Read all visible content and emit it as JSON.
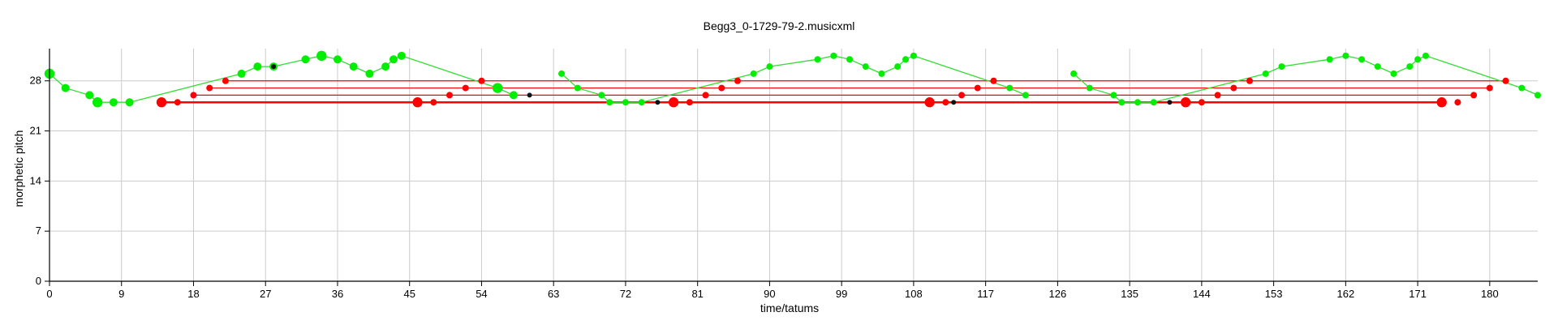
{
  "chart_data": {
    "type": "scatter",
    "title": "Begg3_0-1729-79-2.musicxml",
    "xlabel": "time/tatums",
    "ylabel": "morphetic pitch",
    "xlim": [
      0,
      186
    ],
    "ylim": [
      0,
      32.5
    ],
    "xticks": [
      0,
      9,
      18,
      27,
      36,
      45,
      54,
      63,
      72,
      81,
      90,
      99,
      108,
      117,
      126,
      135,
      144,
      153,
      162,
      171,
      180
    ],
    "yticks": [
      0,
      7,
      14,
      21,
      28
    ],
    "grid": true,
    "colors": {
      "melody": "#00ee00",
      "melody_line": "#33dd33",
      "pattern": "#ff0000",
      "marker": "#111111",
      "grid": "#cccccc"
    },
    "melody_segments": [
      [
        [
          0,
          29,
          "L"
        ],
        [
          2,
          27,
          "M"
        ],
        [
          5,
          26,
          "M"
        ],
        [
          6,
          25,
          "L"
        ],
        [
          8,
          25,
          "M"
        ],
        [
          10,
          25,
          "M"
        ],
        [
          24,
          29,
          "M"
        ],
        [
          26,
          30,
          "M"
        ],
        [
          28,
          30,
          "M"
        ],
        [
          32,
          31,
          "M"
        ],
        [
          34,
          31.5,
          "L"
        ],
        [
          36,
          31,
          "M"
        ],
        [
          38,
          30,
          "M"
        ],
        [
          40,
          29,
          "M"
        ],
        [
          42,
          30,
          "M"
        ],
        [
          43,
          31,
          "M"
        ],
        [
          44,
          31.5,
          "M"
        ],
        [
          56,
          27,
          "L"
        ],
        [
          58,
          26,
          "M"
        ]
      ],
      [
        [
          64,
          29,
          "S"
        ],
        [
          66,
          27,
          "S"
        ],
        [
          69,
          26,
          "S"
        ],
        [
          70,
          25,
          "S"
        ],
        [
          72,
          25,
          "S"
        ],
        [
          74,
          25,
          "S"
        ],
        [
          88,
          29,
          "S"
        ],
        [
          90,
          30,
          "S"
        ],
        [
          96,
          31,
          "S"
        ],
        [
          98,
          31.5,
          "S"
        ],
        [
          100,
          31,
          "S"
        ],
        [
          102,
          30,
          "S"
        ],
        [
          104,
          29,
          "S"
        ],
        [
          106,
          30,
          "S"
        ],
        [
          107,
          31,
          "S"
        ],
        [
          108,
          31.5,
          "S"
        ],
        [
          120,
          27,
          "S"
        ],
        [
          122,
          26,
          "S"
        ]
      ],
      [
        [
          128,
          29,
          "S"
        ],
        [
          130,
          27,
          "S"
        ],
        [
          133,
          26,
          "S"
        ],
        [
          134,
          25,
          "S"
        ],
        [
          136,
          25,
          "S"
        ],
        [
          138,
          25,
          "S"
        ],
        [
          152,
          29,
          "S"
        ],
        [
          154,
          30,
          "S"
        ],
        [
          160,
          31,
          "S"
        ],
        [
          162,
          31.5,
          "S"
        ],
        [
          164,
          31,
          "S"
        ],
        [
          166,
          30,
          "S"
        ],
        [
          168,
          29,
          "S"
        ],
        [
          170,
          30,
          "S"
        ],
        [
          171,
          31,
          "S"
        ],
        [
          172,
          31.5,
          "S"
        ],
        [
          184,
          27,
          "S"
        ],
        [
          186,
          26,
          "S"
        ]
      ]
    ],
    "pattern_lines": [
      {
        "y": 25,
        "x": [
          14,
          174
        ],
        "width": 2.5
      },
      {
        "y": 26,
        "x": [
          18,
          178
        ],
        "width": 1.2
      },
      {
        "y": 27,
        "x": [
          20,
          180
        ],
        "width": 1.2
      },
      {
        "y": 28,
        "x": [
          22,
          182
        ],
        "width": 1.2
      }
    ],
    "pattern_points": [
      [
        14,
        25,
        "L"
      ],
      [
        16,
        25,
        "S"
      ],
      [
        18,
        26,
        "S"
      ],
      [
        20,
        27,
        "S"
      ],
      [
        22,
        28,
        "S"
      ],
      [
        46,
        25,
        "L"
      ],
      [
        48,
        25,
        "S"
      ],
      [
        50,
        26,
        "S"
      ],
      [
        52,
        27,
        "S"
      ],
      [
        54,
        28,
        "S"
      ],
      [
        78,
        25,
        "L"
      ],
      [
        80,
        25,
        "S"
      ],
      [
        82,
        26,
        "S"
      ],
      [
        84,
        27,
        "S"
      ],
      [
        86,
        28,
        "S"
      ],
      [
        110,
        25,
        "L"
      ],
      [
        112,
        25,
        "S"
      ],
      [
        114,
        26,
        "S"
      ],
      [
        116,
        27,
        "S"
      ],
      [
        118,
        28,
        "S"
      ],
      [
        142,
        25,
        "L"
      ],
      [
        144,
        25,
        "S"
      ],
      [
        146,
        26,
        "S"
      ],
      [
        148,
        27,
        "S"
      ],
      [
        150,
        28,
        "S"
      ],
      [
        174,
        25,
        "L"
      ],
      [
        176,
        25,
        "S"
      ],
      [
        178,
        26,
        "S"
      ],
      [
        180,
        27,
        "S"
      ],
      [
        182,
        28,
        "S"
      ]
    ],
    "marker_points": [
      [
        28,
        30
      ],
      [
        60,
        26
      ],
      [
        76,
        25
      ],
      [
        113,
        25
      ],
      [
        140,
        25
      ]
    ]
  }
}
